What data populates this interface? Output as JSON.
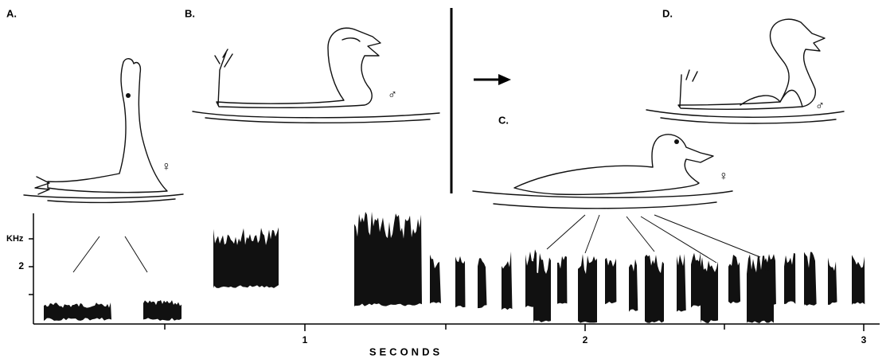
{
  "panels": [
    {
      "label": "A.",
      "sex": "♀"
    },
    {
      "label": "B.",
      "sex": "♂"
    },
    {
      "label": "C.",
      "sex": "♀"
    },
    {
      "label": "D.",
      "sex": "♂"
    }
  ],
  "axis": {
    "y_label": "KHz",
    "y_ticks": [
      "2"
    ],
    "x_ticks": [
      "1",
      "2",
      "3"
    ],
    "x_label": "SECONDS"
  }
}
